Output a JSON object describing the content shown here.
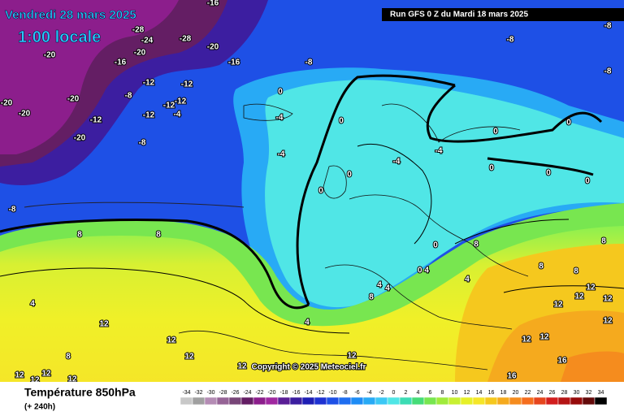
{
  "header": {
    "date": "Vendredi 28 mars 2025",
    "time": "1:00 locale",
    "run": "Run GFS 0 Z du Mardi 18 mars 2025"
  },
  "map": {
    "copyright": "Copyright © 2025 Meteociel.fr",
    "contour_labels": [
      "-16",
      "-28",
      "-24",
      "-28",
      "-20",
      "-20",
      "-20",
      "-16",
      "-16",
      "-8",
      "-8",
      "-8",
      "-8",
      "-20",
      "-20",
      "-12",
      "-12",
      "-8",
      "-12",
      "-12",
      "-4",
      "-12",
      "-12",
      "-20",
      "-20",
      "-8",
      "-8",
      "0",
      "-4",
      "-4",
      "0",
      "0",
      "0",
      "-4",
      "-4",
      "0",
      "0",
      "0",
      "0",
      "0",
      "0",
      "0 4",
      "4",
      "4",
      "4",
      "8",
      "4",
      "8",
      "8",
      "4",
      "12",
      "12",
      "12",
      "12",
      "12",
      "8",
      "12",
      "12",
      "12",
      "12",
      "16",
      "16",
      "12",
      "12",
      "12",
      "12",
      "12",
      "12",
      "12",
      "8",
      "8",
      "8",
      "8"
    ]
  },
  "footer": {
    "title": "Température 850hPa",
    "subtitle": "(+ 240h)"
  },
  "legend": {
    "ticks": [
      -34,
      -32,
      -30,
      -28,
      -26,
      -24,
      -22,
      -20,
      -18,
      -16,
      -14,
      -12,
      -10,
      -8,
      -6,
      -4,
      -2,
      0,
      2,
      4,
      6,
      8,
      10,
      12,
      14,
      16,
      18,
      20,
      22,
      24,
      26,
      28,
      30,
      32,
      34
    ],
    "colors": [
      "#c8c8c8",
      "#a0a0a0",
      "#b48cb4",
      "#966496",
      "#784678",
      "#641e64",
      "#8c1e8c",
      "#a028a0",
      "#5a1e96",
      "#3c1ea0",
      "#1e1eb4",
      "#1e32d2",
      "#1e50e6",
      "#1e6ef0",
      "#1e8cf5",
      "#28aaf5",
      "#3cc8f5",
      "#50e6e6",
      "#3cdcb4",
      "#46dc78",
      "#78e650",
      "#a0eb3c",
      "#c8f032",
      "#e6f028",
      "#f5e628",
      "#f5c81e",
      "#f5aa1e",
      "#f58c1e",
      "#f56e1e",
      "#e6461e",
      "#d21e1e",
      "#b41414",
      "#960a0a",
      "#640a0a",
      "#000000"
    ]
  }
}
